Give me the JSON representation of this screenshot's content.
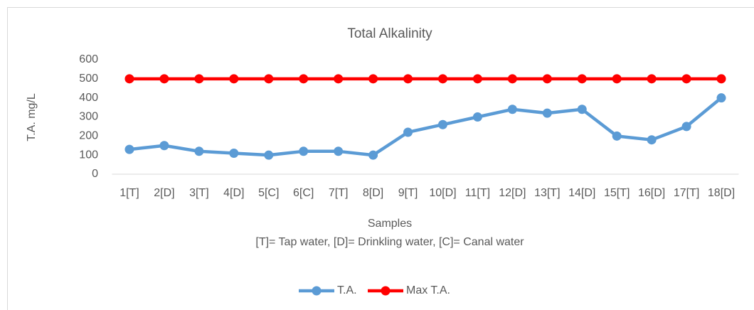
{
  "chart_data": {
    "type": "line",
    "title": "Total Alkalinity",
    "xlabel": "Samples",
    "note": "[T]= Tap water, [D]= Drinkling water, [C]= Canal water",
    "ylabel": "T.A. mg/L",
    "categories": [
      "1[T]",
      "2[D]",
      "3[T]",
      "4[D]",
      "5[C]",
      "6[C]",
      "7[T]",
      "8[D]",
      "9[T]",
      "10[D]",
      "11[T]",
      "12[D]",
      "13[T]",
      "14[D]",
      "15[T]",
      "16[D]",
      "17[T]",
      "18[D]"
    ],
    "series": [
      {
        "name": "T.A.",
        "color": "#5b9bd5",
        "values": [
          130,
          150,
          120,
          110,
          100,
          120,
          120,
          100,
          220,
          260,
          300,
          340,
          320,
          340,
          200,
          180,
          250,
          400
        ]
      },
      {
        "name": "Max T.A.",
        "color": "#ff0000",
        "values": [
          500,
          500,
          500,
          500,
          500,
          500,
          500,
          500,
          500,
          500,
          500,
          500,
          500,
          500,
          500,
          500,
          500,
          500
        ]
      }
    ],
    "ylim": [
      0,
      600
    ],
    "yticks": [
      0,
      100,
      200,
      300,
      400,
      500,
      600
    ],
    "grid": false,
    "legend": "bottom"
  }
}
